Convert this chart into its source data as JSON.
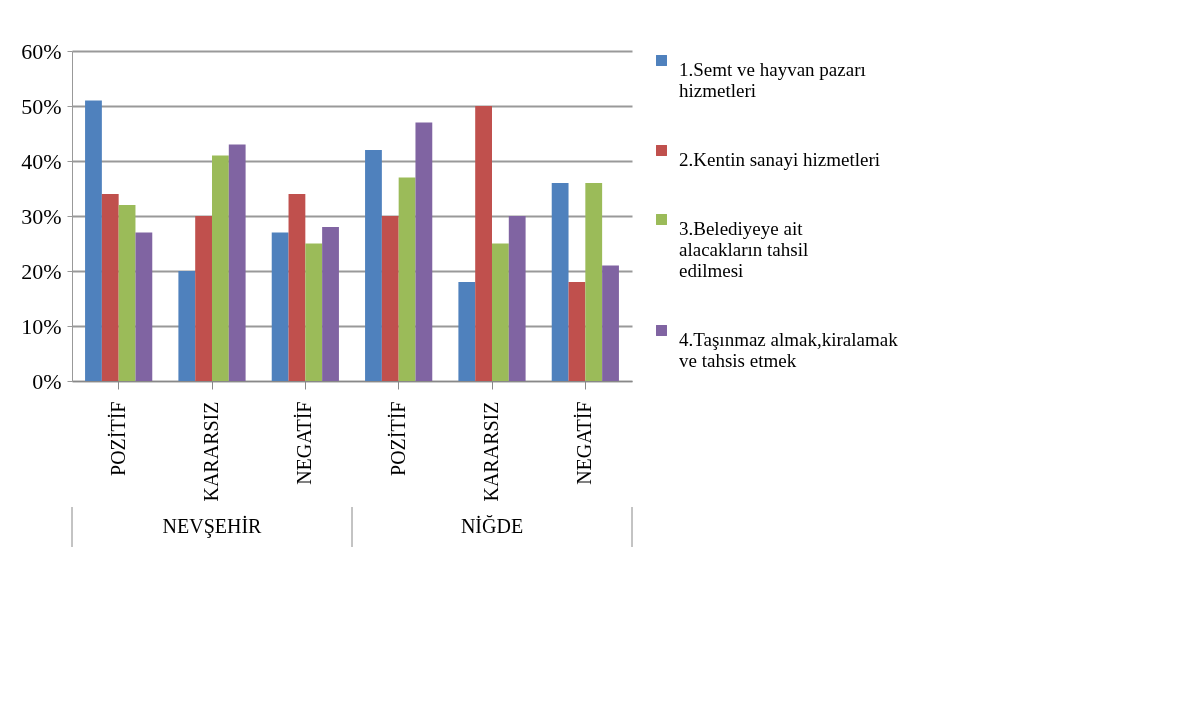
{
  "chart_data": {
    "type": "bar",
    "categories": [
      "POZİTİF",
      "KARARSIZ",
      "NEGATİF",
      "POZİTİF",
      "KARARSIZ",
      "NEGATİF"
    ],
    "series": [
      {
        "name": "1.Semt ve hayvan pazarı hizmetleri",
        "color": "#4f81bd",
        "values": [
          51,
          20,
          27,
          42,
          18,
          36
        ]
      },
      {
        "name": "2.Kentin sanayi hizmetleri",
        "color": "#c0504d",
        "values": [
          34,
          30,
          34,
          30,
          50,
          18
        ]
      },
      {
        "name": "3.Belediyeye ait alacakların tahsil edilmesi",
        "color": "#9bbb59",
        "values": [
          32,
          41,
          25,
          37,
          25,
          36
        ]
      },
      {
        "name": "4.Taşınmaz almak,kiralamak ve tahsis etmek",
        "color": "#8064a2",
        "values": [
          27,
          43,
          28,
          47,
          30,
          21
        ]
      }
    ],
    "ylim": [
      0,
      60
    ],
    "yticks": [
      {
        "value": 0,
        "label": "0%"
      },
      {
        "value": 10,
        "label": "10%"
      },
      {
        "value": 20,
        "label": "20%"
      },
      {
        "value": 30,
        "label": "30%"
      },
      {
        "value": 40,
        "label": "40%"
      },
      {
        "value": 50,
        "label": "50%"
      },
      {
        "value": 60,
        "label": "60%"
      }
    ],
    "grid": "y",
    "legend": "right",
    "annotations": [
      "NEVŞEHİR",
      "NİĞDE"
    ]
  }
}
